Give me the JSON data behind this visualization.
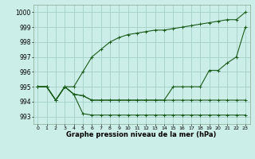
{
  "xlabel": "Graphe pression niveau de la mer (hPa)",
  "xlim": [
    -0.5,
    23.5
  ],
  "ylim": [
    992.5,
    1000.5
  ],
  "yticks": [
    993,
    994,
    995,
    996,
    997,
    998,
    999,
    1000
  ],
  "xticks": [
    0,
    1,
    2,
    3,
    4,
    5,
    6,
    7,
    8,
    9,
    10,
    11,
    12,
    13,
    14,
    15,
    16,
    17,
    18,
    19,
    20,
    21,
    22,
    23
  ],
  "bg_color": "#cceee8",
  "grid_color": "#aad4cc",
  "line_color": "#1a5c1a",
  "series": [
    [
      995.0,
      995.0,
      994.1,
      995.0,
      995.0,
      996.0,
      997.0,
      997.5,
      998.0,
      998.3,
      998.5,
      998.6,
      998.7,
      998.8,
      998.8,
      998.9,
      999.0,
      999.1,
      999.2,
      999.3,
      999.4,
      999.5,
      999.5,
      1000.0
    ],
    [
      995.0,
      995.0,
      994.1,
      995.0,
      994.5,
      994.4,
      994.1,
      994.1,
      994.1,
      994.1,
      994.1,
      994.1,
      994.1,
      994.1,
      994.1,
      995.0,
      995.0,
      995.0,
      995.0,
      996.1,
      996.1,
      996.6,
      997.0,
      999.0
    ],
    [
      995.0,
      995.0,
      994.1,
      995.0,
      994.5,
      994.4,
      994.1,
      994.1,
      994.1,
      994.1,
      994.1,
      994.1,
      994.1,
      994.1,
      994.1,
      994.1,
      994.1,
      994.1,
      994.1,
      994.1,
      994.1,
      994.1,
      994.1,
      994.1
    ],
    [
      995.0,
      995.0,
      994.1,
      995.0,
      994.5,
      993.2,
      993.1,
      993.1,
      993.1,
      993.1,
      993.1,
      993.1,
      993.1,
      993.1,
      993.1,
      993.1,
      993.1,
      993.1,
      993.1,
      993.1,
      993.1,
      993.1,
      993.1,
      993.1
    ]
  ]
}
